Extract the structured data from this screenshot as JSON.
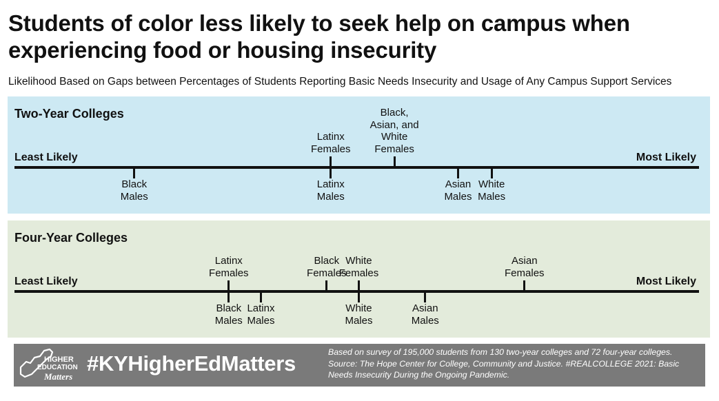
{
  "title": "Students of color less likely to seek help on campus when experiencing food or housing insecurity",
  "subtitle": "Likelihood Based on Gaps between Percentages of Students Reporting Basic Needs Insecurity and Usage of Any Campus Support Services",
  "chart_data": [
    {
      "type": "dot-scale",
      "title": "Two-Year Colleges",
      "axis_labels": {
        "left": "Least Likely",
        "right": "Most Likely"
      },
      "points": [
        {
          "label": "Black Males",
          "position": 0.175,
          "side": "below"
        },
        {
          "label": "Latinx Females",
          "position": 0.462,
          "side": "above"
        },
        {
          "label": "Latinx Males",
          "position": 0.462,
          "side": "below"
        },
        {
          "label": "Black, Asian, and White Females",
          "position": 0.555,
          "side": "above"
        },
        {
          "label": "Asian Males",
          "position": 0.648,
          "side": "below"
        },
        {
          "label": "White Males",
          "position": 0.697,
          "side": "below"
        }
      ]
    },
    {
      "type": "dot-scale",
      "title": "Four-Year Colleges",
      "axis_labels": {
        "left": "Least Likely",
        "right": "Most Likely"
      },
      "points": [
        {
          "label": "Latinx Females",
          "position": 0.313,
          "side": "above"
        },
        {
          "label": "Black Males",
          "position": 0.313,
          "side": "below"
        },
        {
          "label": "Latinx Males",
          "position": 0.36,
          "side": "below"
        },
        {
          "label": "Black Females",
          "position": 0.456,
          "side": "above"
        },
        {
          "label": "White Females",
          "position": 0.503,
          "side": "above"
        },
        {
          "label": "White Males",
          "position": 0.503,
          "side": "below"
        },
        {
          "label": "Asian Males",
          "position": 0.6,
          "side": "below"
        },
        {
          "label": "Asian Females",
          "position": 0.745,
          "side": "above"
        }
      ]
    }
  ],
  "footer": {
    "logo_lines": [
      "HIGHER",
      "EDUCATION",
      "Matters"
    ],
    "hashtag": "#KYHigherEdMatters",
    "source": "Based on survey of 195,000 students from 130 two-year colleges and 72 four-year colleges. Source: The Hope Center for College, Community and Justice. #REALCOLLEGE 2021: Basic Needs Insecurity During the Ongoing Pandemic."
  }
}
